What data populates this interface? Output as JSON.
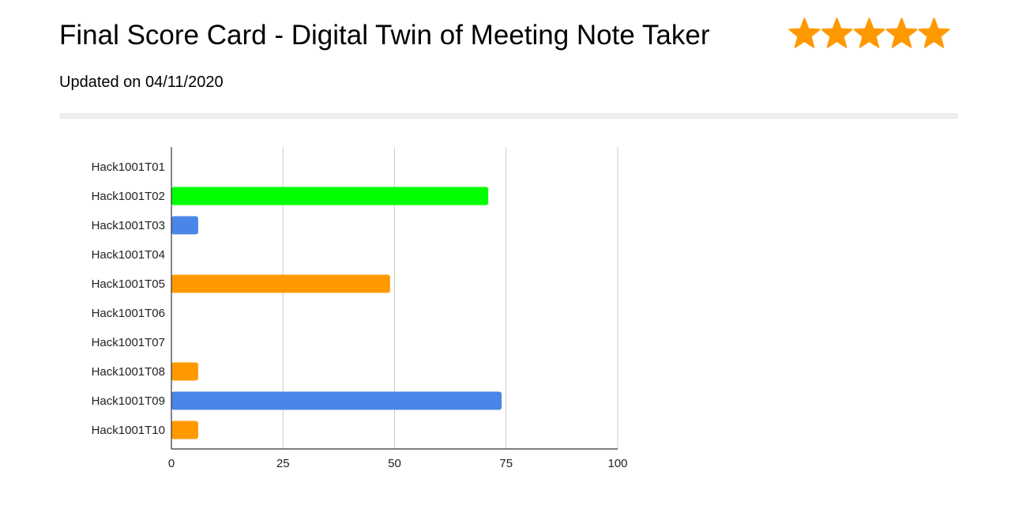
{
  "header": {
    "title": "Final Score Card - Digital Twin of Meeting Note Taker",
    "updated": "Updated on 04/11/2020",
    "rating": {
      "stars": 5,
      "max": 5,
      "color": "#ff9900",
      "icon": "star-icon"
    }
  },
  "chart_data": {
    "type": "bar",
    "orientation": "horizontal",
    "categories": [
      "Hack1001T01",
      "Hack1001T02",
      "Hack1001T03",
      "Hack1001T04",
      "Hack1001T05",
      "Hack1001T06",
      "Hack1001T07",
      "Hack1001T08",
      "Hack1001T09",
      "Hack1001T10"
    ],
    "values": [
      0,
      71,
      6,
      0,
      49,
      0,
      0,
      6,
      74,
      6
    ],
    "colors": [
      "#4a86e8",
      "#00ff00",
      "#4a86e8",
      "#4a86e8",
      "#ff9900",
      "#4a86e8",
      "#4a86e8",
      "#ff9900",
      "#4a86e8",
      "#ff9900"
    ],
    "xlim": [
      0,
      100
    ],
    "xticks": [
      0,
      25,
      50,
      75,
      100
    ],
    "grid": true,
    "legend": "none",
    "title": "",
    "xlabel": "",
    "ylabel": ""
  }
}
